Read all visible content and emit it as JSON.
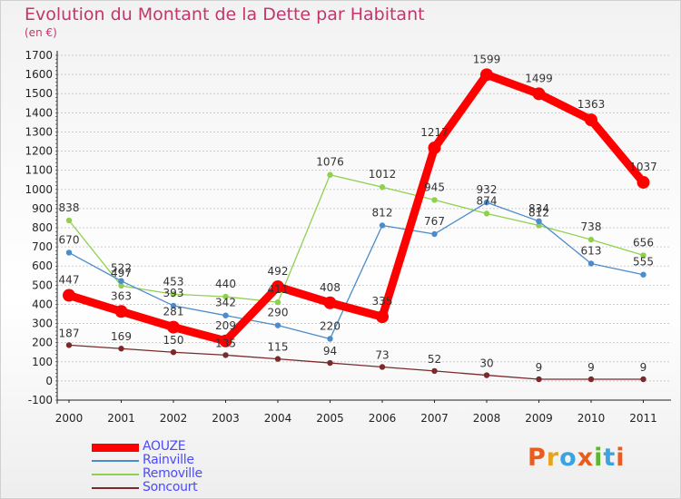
{
  "title": "Evolution du Montant de la Dette par Habitant",
  "unit": "(en €)",
  "logo": "Proxiti",
  "colors": {
    "title": "#c2366c",
    "grid": "#cccccc",
    "logo": [
      "#e85d1e",
      "#e8a21e",
      "#3aa3e0",
      "#e85d1e",
      "#5bb82e",
      "#3aa3e0",
      "#e85d1e"
    ]
  },
  "chart_data": {
    "type": "line",
    "title": "Evolution du Montant de la Dette par Habitant",
    "ylabel": "(en €)",
    "xlabel": "",
    "categories": [
      "2000",
      "2001",
      "2002",
      "2003",
      "2004",
      "2005",
      "2006",
      "2007",
      "2008",
      "2009",
      "2010",
      "2011"
    ],
    "ylim": [
      -100,
      1700
    ],
    "yticks": [
      "-100",
      "0",
      "100",
      "200",
      "300",
      "400",
      "500",
      "600",
      "700",
      "800",
      "900",
      "1000",
      "1100",
      "1200",
      "1300",
      "1400",
      "1500",
      "1600",
      "1700"
    ],
    "grid": "horizontal",
    "legend": "bottom-left",
    "series": [
      {
        "name": "AOUZE",
        "color": "#ff0000",
        "values": [
          447,
          363,
          281,
          209,
          492,
          408,
          335,
          1217,
          1599,
          1499,
          1363,
          1037
        ]
      },
      {
        "name": "Rainville",
        "color": "#4a8ccc",
        "values": [
          670,
          522,
          393,
          342,
          290,
          220,
          812,
          767,
          932,
          834,
          613,
          555
        ]
      },
      {
        "name": "Removille",
        "color": "#8fd14f",
        "values": [
          838,
          497,
          453,
          440,
          411,
          1076,
          1012,
          945,
          874,
          812,
          738,
          656
        ]
      },
      {
        "name": "Soncourt",
        "color": "#7a2a2a",
        "values": [
          187,
          169,
          150,
          135,
          115,
          94,
          73,
          52,
          30,
          9,
          9,
          9
        ]
      }
    ]
  }
}
